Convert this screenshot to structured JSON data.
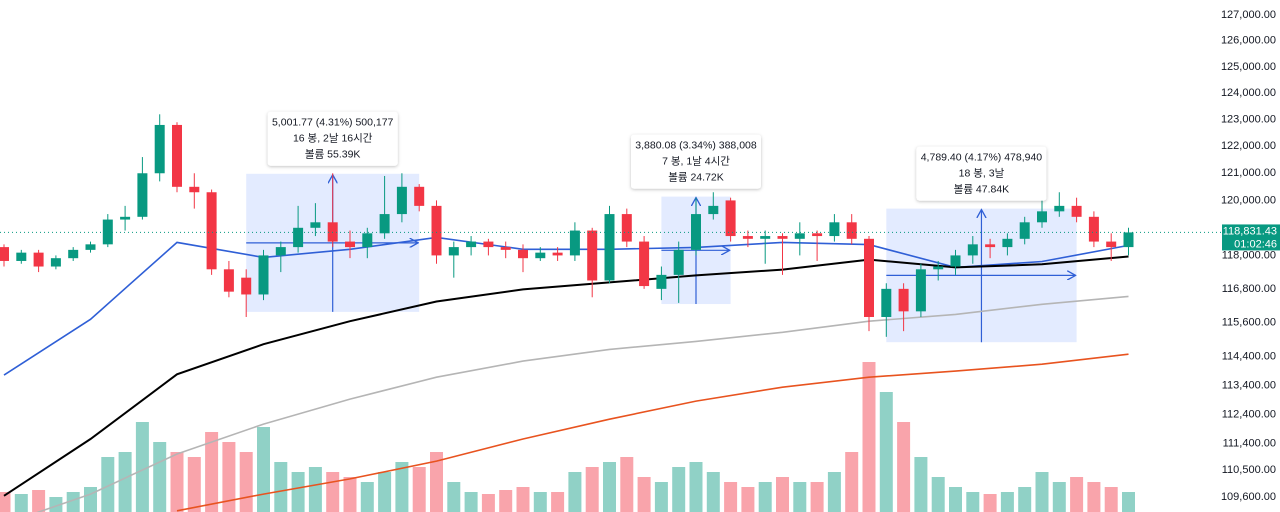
{
  "chart_data": {
    "type": "candlestick",
    "log": true,
    "ylim": [
      109100,
      127580
    ],
    "yticks": [
      {
        "value": 127000,
        "label": "127,000.00"
      },
      {
        "value": 126000,
        "label": "126,000.00"
      },
      {
        "value": 125000,
        "label": "125,000.00"
      },
      {
        "value": 124000,
        "label": "124,000.00"
      },
      {
        "value": 123000,
        "label": "123,000.00"
      },
      {
        "value": 122000,
        "label": "122,000.00"
      },
      {
        "value": 121000,
        "label": "121,000.00"
      },
      {
        "value": 120000,
        "label": "120,000.00"
      },
      {
        "value": 118000,
        "label": "118,000.00"
      },
      {
        "value": 116800,
        "label": "116,800.00"
      },
      {
        "value": 115600,
        "label": "115,600.00"
      },
      {
        "value": 114400,
        "label": "114,400.00"
      },
      {
        "value": 113400,
        "label": "113,400.00"
      },
      {
        "value": 112400,
        "label": "112,400.00"
      },
      {
        "value": 111400,
        "label": "111,400.00"
      },
      {
        "value": 110500,
        "label": "110,500.00"
      },
      {
        "value": 109600,
        "label": "109,600.00"
      }
    ],
    "up_color": "#089981",
    "down_color": "#f23645",
    "candles": {
      "open": [
        118300,
        117800,
        118100,
        117600,
        117900,
        118200,
        118400,
        119300,
        119400,
        121000,
        122800,
        120500,
        120300,
        117500,
        117200,
        116600,
        118000,
        118300,
        119000,
        119200,
        118500,
        118300,
        118800,
        119500,
        120500,
        119800,
        118000,
        118300,
        118500,
        118300,
        118200,
        117900,
        118100,
        118000,
        118900,
        117100,
        119500,
        118500,
        116800,
        117300,
        118200,
        119500,
        120000,
        118700,
        118600,
        118700,
        118600,
        118800,
        118700,
        119200,
        118600,
        115800,
        116800,
        116000,
        117500,
        117600,
        118000,
        118400,
        118300,
        118600,
        119200,
        119600,
        119800,
        119400,
        118500,
        118300
      ],
      "high": [
        118400,
        118200,
        118200,
        118000,
        118300,
        118500,
        119500,
        119800,
        121600,
        123200,
        122900,
        121000,
        120400,
        117800,
        117500,
        118200,
        118500,
        119800,
        119900,
        121000,
        118900,
        119000,
        120900,
        121000,
        120600,
        120000,
        118500,
        118700,
        118600,
        118500,
        118400,
        118300,
        118300,
        119200,
        119000,
        119800,
        119700,
        118700,
        117600,
        118500,
        120100,
        120300,
        120100,
        118900,
        118900,
        118800,
        119200,
        118900,
        119500,
        119500,
        118700,
        117000,
        117000,
        117700,
        117800,
        118200,
        118700,
        118600,
        118800,
        119400,
        120000,
        120300,
        120100,
        119600,
        118800,
        119000
      ],
      "low": [
        117600,
        117700,
        117400,
        117500,
        117800,
        118100,
        118300,
        118900,
        119300,
        120700,
        120300,
        119700,
        117300,
        116500,
        115800,
        116400,
        117400,
        118100,
        118700,
        118300,
        117900,
        117900,
        118600,
        119200,
        119600,
        117700,
        117200,
        118000,
        118000,
        117900,
        117400,
        117800,
        117800,
        117800,
        116500,
        117000,
        118300,
        116800,
        116400,
        116300,
        118000,
        119300,
        118500,
        118300,
        117700,
        117300,
        118000,
        117800,
        118500,
        118400,
        115300,
        115100,
        115300,
        115800,
        117100,
        117300,
        117700,
        117900,
        118000,
        118400,
        119000,
        119400,
        119200,
        118300,
        117800,
        118000
      ],
      "close": [
        117800,
        118100,
        117600,
        117900,
        118200,
        118400,
        119300,
        119400,
        121000,
        122800,
        120500,
        120300,
        117500,
        116700,
        116600,
        118000,
        118300,
        119000,
        119200,
        118500,
        118300,
        118800,
        119500,
        120500,
        119800,
        118000,
        118300,
        118500,
        118300,
        118200,
        117900,
        118100,
        118000,
        118900,
        117100,
        119500,
        118500,
        116900,
        117300,
        118200,
        119500,
        119800,
        118700,
        118600,
        118700,
        118600,
        118800,
        118700,
        119200,
        118600,
        115800,
        116800,
        116000,
        117500,
        117600,
        118000,
        118400,
        118300,
        118600,
        119200,
        119600,
        119800,
        119400,
        118500,
        118300,
        118831.43
      ],
      "volume": [
        20,
        18,
        22,
        15,
        20,
        25,
        55,
        60,
        90,
        70,
        60,
        55,
        80,
        70,
        60,
        85,
        50,
        40,
        45,
        40,
        35,
        30,
        40,
        50,
        45,
        60,
        30,
        20,
        18,
        22,
        25,
        20,
        20,
        40,
        45,
        50,
        55,
        35,
        30,
        45,
        50,
        40,
        30,
        25,
        30,
        35,
        30,
        30,
        40,
        60,
        150,
        120,
        90,
        55,
        35,
        25,
        20,
        18,
        20,
        25,
        40,
        30,
        35,
        30,
        25,
        20
      ]
    },
    "moving_averages": {
      "x": [
        0,
        5,
        10,
        15,
        20,
        25,
        30,
        35,
        40,
        45,
        50,
        55,
        60,
        65
      ],
      "series": [
        {
          "color": "#2f5fd6",
          "values": [
            113760,
            115720,
            118470,
            117930,
            118220,
            118650,
            118220,
            118220,
            118290,
            118470,
            118390,
            117570,
            117780,
            118360
          ]
        },
        {
          "color": "#000000",
          "values": [
            109640,
            111560,
            113790,
            114840,
            115650,
            116350,
            116780,
            117030,
            117280,
            117490,
            117850,
            117570,
            117680,
            117960
          ]
        },
        {
          "color": "#b5b5b5",
          "values": [
            108700,
            109700,
            111050,
            112070,
            112930,
            113690,
            114250,
            114660,
            114940,
            115260,
            115650,
            115890,
            116250,
            116530
          ]
        },
        {
          "color": "#e8531f",
          "values": [
            null,
            null,
            109140,
            109700,
            110210,
            110810,
            111560,
            112240,
            112860,
            113340,
            113690,
            113900,
            114140,
            114490
          ]
        }
      ]
    },
    "measures": [
      {
        "start": 14,
        "end": 24,
        "low": 115980,
        "high": 120980,
        "lines": [
          "5,001.77 (4.31%) 500,177",
          "16 봉, 2날 16시간",
          "볼륨 55.39K"
        ]
      },
      {
        "start": 38,
        "end": 42,
        "low": 116260,
        "high": 120140,
        "lines": [
          "3,880.08 (3.34%) 388,008",
          "7 봉, 1날 4시간",
          "볼륨 24.72K"
        ]
      },
      {
        "start": 51,
        "end": 62,
        "low": 114911,
        "high": 119700,
        "lines": [
          "4,789.40 (4.17%) 478,940",
          "18 봉, 3날",
          "볼륨 47.84K"
        ]
      }
    ],
    "last_price_label": "118,831.43",
    "countdown": "01:02:46"
  }
}
